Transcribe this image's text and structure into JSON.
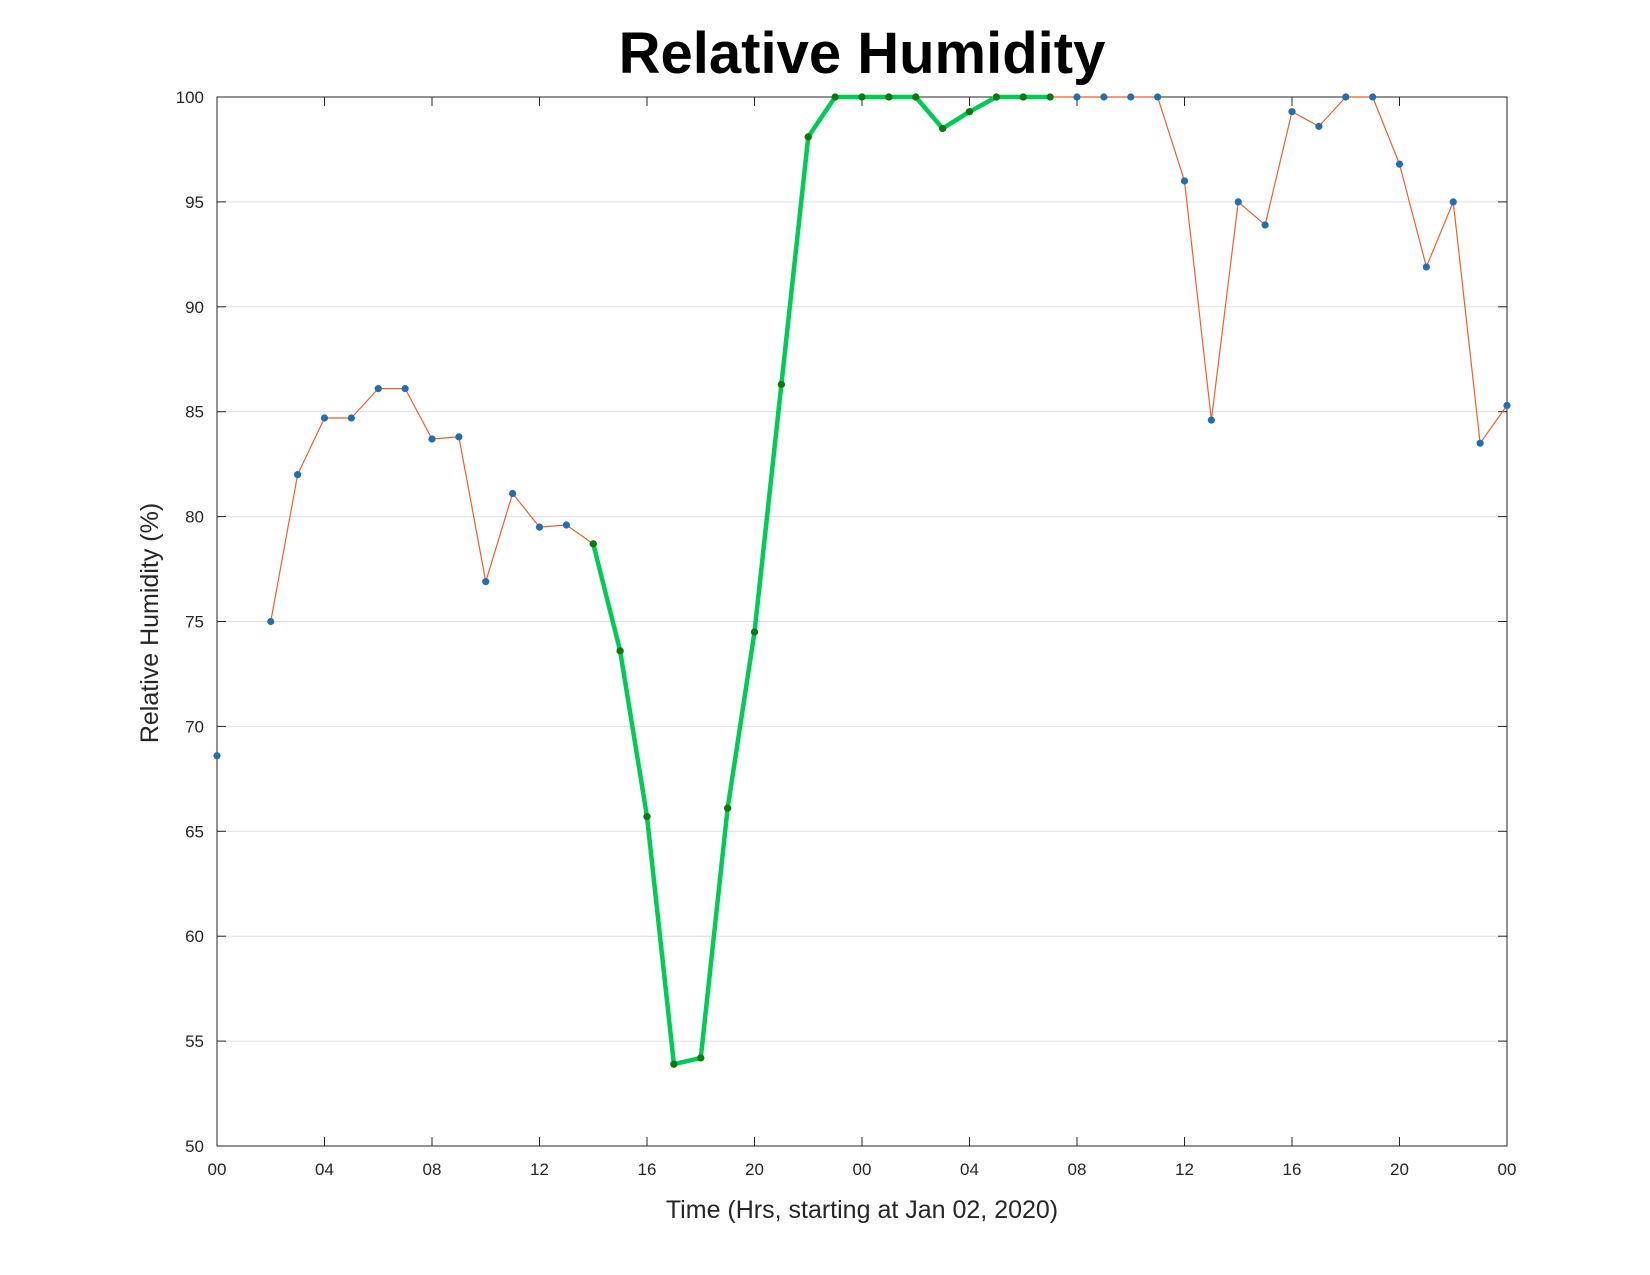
{
  "chart_data": {
    "type": "line",
    "title": "Relative Humidity",
    "xlabel": "Time (Hrs, starting at Jan 02, 2020)",
    "ylabel": "Relative Humidity (%)",
    "xlim": [
      0,
      48
    ],
    "ylim": [
      50,
      100
    ],
    "x_ticks": [
      0,
      4,
      8,
      12,
      16,
      20,
      24,
      28,
      32,
      36,
      40,
      44,
      48
    ],
    "x_tick_labels": [
      "00",
      "04",
      "08",
      "12",
      "16",
      "20",
      "00",
      "04",
      "08",
      "12",
      "16",
      "20",
      "00"
    ],
    "y_ticks": [
      50,
      55,
      60,
      65,
      70,
      75,
      80,
      85,
      90,
      95,
      100
    ],
    "y_tick_labels": [
      "50",
      "55",
      "60",
      "65",
      "70",
      "75",
      "80",
      "85",
      "90",
      "95",
      "100"
    ],
    "grid": "horizontal",
    "series": [
      {
        "color": "#e8622c",
        "marker_color": "#1f6fb2",
        "x": [
          0,
          2,
          3,
          4,
          5,
          6,
          7,
          8,
          9,
          10,
          11,
          12,
          13,
          14,
          15,
          16,
          17,
          18,
          19,
          20,
          21,
          22,
          23,
          24,
          25,
          26,
          27,
          28,
          29,
          30,
          31,
          32,
          33,
          34,
          35,
          36,
          37,
          38,
          39,
          40,
          41,
          42,
          43,
          44,
          45,
          46,
          47,
          48
        ],
        "y": [
          68.6,
          75.0,
          82.0,
          84.7,
          84.7,
          86.1,
          86.1,
          83.7,
          83.8,
          76.9,
          81.1,
          79.5,
          79.6,
          78.7,
          73.6,
          65.7,
          53.9,
          54.2,
          66.1,
          74.5,
          86.3,
          98.1,
          100,
          100,
          100,
          100,
          98.5,
          99.3,
          100,
          100,
          100,
          100,
          100,
          100,
          100,
          96.0,
          84.6,
          95.0,
          93.9,
          99.3,
          98.6,
          100,
          100,
          96.8,
          91.9,
          95.0,
          83.5,
          85.3
        ]
      },
      {
        "color": "#00cc55",
        "marker_color": "#0a7a0a",
        "x": [
          14,
          15,
          16,
          17,
          18,
          19,
          20,
          21,
          22,
          23,
          24,
          25,
          26,
          27,
          28,
          29,
          30,
          31
        ],
        "y": [
          78.7,
          73.6,
          65.7,
          53.9,
          54.2,
          66.1,
          74.5,
          86.3,
          98.1,
          100,
          100,
          100,
          100,
          98.5,
          99.3,
          100,
          100,
          100
        ]
      }
    ]
  }
}
